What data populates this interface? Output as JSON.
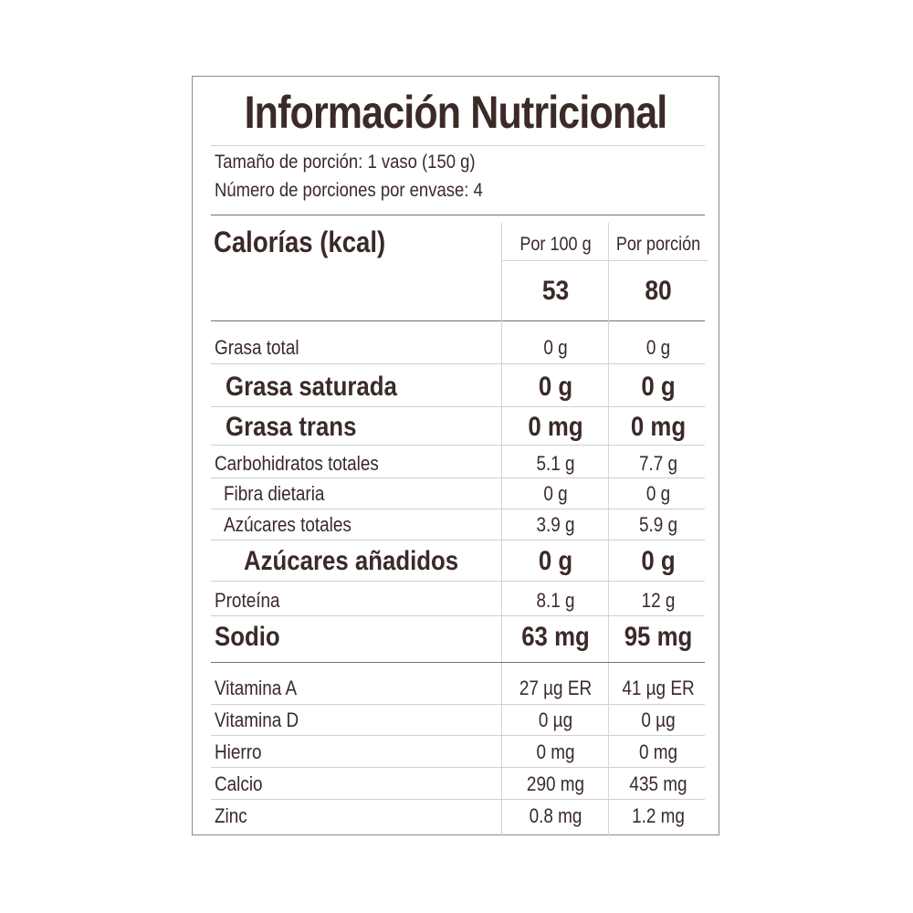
{
  "title": "Información Nutricional",
  "serving": {
    "size": "Tamaño de porción: 1 vaso (150 g)",
    "per_container": "Número de porciones por envase: 4"
  },
  "calories": {
    "label": "Calorías (kcal)",
    "col1_header": "Por 100 g",
    "col2_header": "Por porción",
    "per100": "53",
    "perServing": "80"
  },
  "nutrients": [
    {
      "name": "Grasa total",
      "per100": "0 g",
      "perServing": "0 g",
      "style": "normal"
    },
    {
      "name": "Grasa saturada",
      "per100": "0 g",
      "perServing": "0 g",
      "style": "bold"
    },
    {
      "name": "Grasa trans",
      "per100": "0 mg",
      "perServing": "0 mg",
      "style": "bold"
    },
    {
      "name": "Carbohidratos totales",
      "per100": "5.1 g",
      "perServing": "7.7 g",
      "style": "normal"
    },
    {
      "name": "Fibra dietaria",
      "per100": "0 g",
      "perServing": "0 g",
      "style": "normal"
    },
    {
      "name": "Azúcares totales",
      "per100": "3.9 g",
      "perServing": "5.9 g",
      "style": "normal"
    },
    {
      "name": "Azúcares añadidos",
      "per100": "0 g",
      "perServing": "0 g",
      "style": "bold"
    },
    {
      "name": "Proteína",
      "per100": "8.1 g",
      "perServing": "12 g",
      "style": "normal"
    },
    {
      "name": "Sodio",
      "per100": "63 mg",
      "perServing": "95 mg",
      "style": "bold"
    }
  ],
  "micronutrients": [
    {
      "name": "Vitamina A",
      "per100": "27 µg ER",
      "perServing": "41 µg ER"
    },
    {
      "name": "Vitamina D",
      "per100": "0 µg",
      "perServing": "0 µg"
    },
    {
      "name": "Hierro",
      "per100": "0 mg",
      "perServing": "0 mg"
    },
    {
      "name": "Calcio",
      "per100": "290 mg",
      "perServing": "435 mg"
    },
    {
      "name": "Zinc",
      "per100": "0.8 mg",
      "perServing": "1.2 mg"
    }
  ]
}
